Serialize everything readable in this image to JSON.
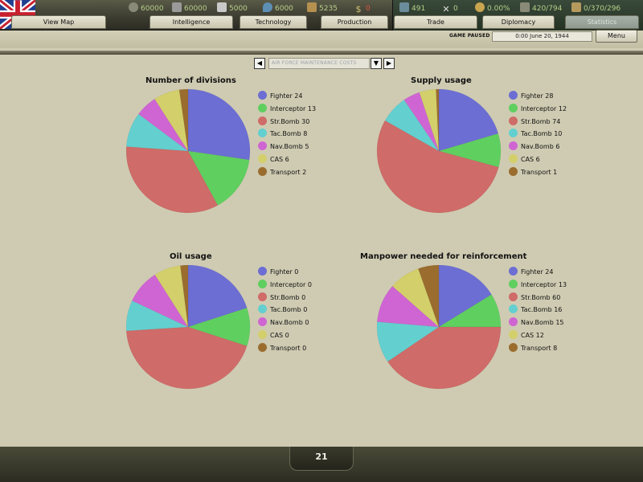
{
  "colors": {
    "fighter": "#6c6ed3",
    "interceptor": "#5fcf5f",
    "str_bomb": "#cf6b68",
    "tac_bomb": "#63cfcf",
    "nav_bomb": "#cf65d3",
    "cas": "#d3cf6a",
    "transport": "#9a6c2e"
  },
  "top": {
    "resources": [
      {
        "name": "energy-icon",
        "value": "60000",
        "color": "#b7d08a"
      },
      {
        "name": "metal-icon",
        "value": "60000",
        "color": "#b7d08a"
      },
      {
        "name": "rare-materials-icon",
        "value": "5000",
        "color": "#b7d08a"
      },
      {
        "name": "oil-icon",
        "value": "6000",
        "color": "#b7d08a"
      },
      {
        "name": "supplies-icon",
        "value": "5235",
        "color": "#b7d08a"
      },
      {
        "name": "money-icon",
        "value": "0",
        "color": "#e0533a"
      }
    ],
    "stats": [
      {
        "name": "manpower-icon",
        "value": "491"
      },
      {
        "name": "diplomats-icon",
        "value": "0"
      },
      {
        "name": "dissent-icon",
        "value": "0.00%"
      },
      {
        "name": "ic-icon",
        "value": "420/794"
      },
      {
        "name": "transport-capacity-icon",
        "value": "0/370/296"
      }
    ],
    "tabs": [
      {
        "name": "tab-view-map",
        "label": "View Map"
      },
      {
        "name": "tab-intelligence",
        "label": "Intelligence"
      },
      {
        "name": "tab-technology",
        "label": "Technology"
      },
      {
        "name": "tab-production",
        "label": "Production"
      },
      {
        "name": "tab-trade",
        "label": "Trade"
      },
      {
        "name": "tab-diplomacy",
        "label": "Diplomacy"
      },
      {
        "name": "tab-statistics",
        "label": "Statistics"
      }
    ],
    "status_label": "GAME PAUSED",
    "date": "0:00 June 20, 1944",
    "menu_label": "Menu"
  },
  "selector": {
    "value": "AIR FORCE MAINTENANCE COSTS",
    "prev_icon": "arrow-left-icon",
    "next_icon": "arrow-right-icon",
    "dropdown_icon": "chevron-down-icon"
  },
  "chart_data": [
    {
      "type": "pie",
      "title": "Number of divisions",
      "categories": [
        "Fighter",
        "Interceptor",
        "Str.Bomb",
        "Tac.Bomb",
        "Nav.Bomb",
        "CAS",
        "Transport"
      ],
      "values": [
        24,
        13,
        30,
        8,
        5,
        6,
        2
      ],
      "legend": [
        "Fighter 24",
        "Interceptor 13",
        "Str.Bomb 30",
        "Tac.Bomb 8",
        "Nav.Bomb 5",
        "CAS 6",
        "Transport 2"
      ],
      "legend_position": "right"
    },
    {
      "type": "pie",
      "title": "Supply usage",
      "categories": [
        "Fighter",
        "Interceptor",
        "Str.Bomb",
        "Tac.Bomb",
        "Nav.Bomb",
        "CAS",
        "Transport"
      ],
      "values": [
        28,
        12,
        74,
        10,
        6,
        6,
        1
      ],
      "legend": [
        "Fighter 28",
        "Interceptor 12",
        "Str.Bomb 74",
        "Tac.Bomb 10",
        "Nav.Bomb 6",
        "CAS 6",
        "Transport 1"
      ],
      "legend_position": "right"
    },
    {
      "type": "pie",
      "title": "Oil usage",
      "categories": [
        "Fighter",
        "Interceptor",
        "Str.Bomb",
        "Tac.Bomb",
        "Nav.Bomb",
        "CAS",
        "Transport"
      ],
      "values": [
        0,
        0,
        0,
        0,
        0,
        0,
        0
      ],
      "slice_shares": [
        0.2,
        0.1,
        0.44,
        0.08,
        0.09,
        0.07,
        0.02
      ],
      "legend": [
        "Fighter 0",
        "Interceptor 0",
        "Str.Bomb 0",
        "Tac.Bomb 0",
        "Nav.Bomb 0",
        "CAS 0",
        "Transport 0"
      ],
      "legend_position": "right"
    },
    {
      "type": "pie",
      "title": "Manpower needed for reinforcement",
      "categories": [
        "Fighter",
        "Interceptor",
        "Str.Bomb",
        "Tac.Bomb",
        "Nav.Bomb",
        "CAS",
        "Transport"
      ],
      "values": [
        24,
        13,
        60,
        16,
        15,
        12,
        8
      ],
      "legend": [
        "Fighter 24",
        "Interceptor 13",
        "Str.Bomb 60",
        "Tac.Bomb 16",
        "Nav.Bomb 15",
        "CAS 12",
        "Transport 8"
      ],
      "legend_position": "right"
    }
  ],
  "footer": {
    "page": "21"
  }
}
